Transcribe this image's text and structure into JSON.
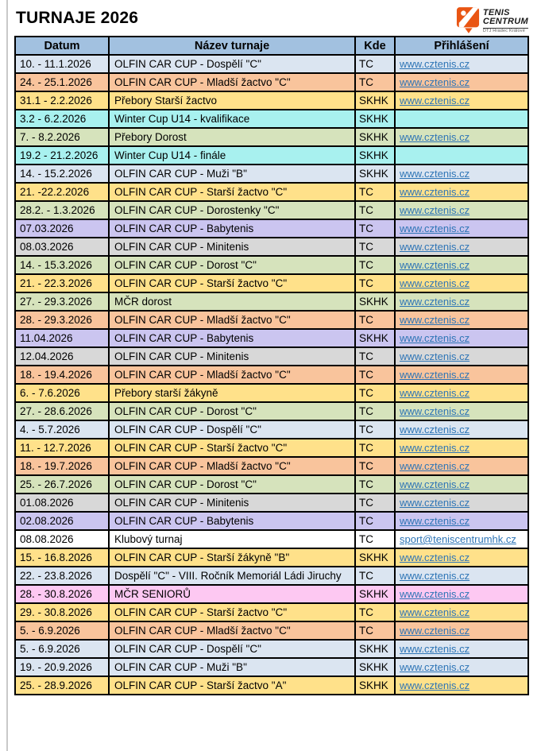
{
  "page": {
    "title": "TURNAJE 2026"
  },
  "logo": {
    "line1": "TENIS",
    "line2": "CENTRUM",
    "subtext": "DTJ Hradec Králové",
    "orange": "#e95513"
  },
  "table": {
    "headers": [
      "Datum",
      "Název turnaje",
      "Kde",
      "Přihlášení"
    ],
    "header_bg": "#a2c1e0",
    "link_color": "#2e75b6",
    "row_colors": {
      "lightblue": "#dbe5f1",
      "salmon": "#f9c49c",
      "yellow": "#ffe18a",
      "cyan": "#a8f1ef",
      "green": "#d6e3bc",
      "lavender": "#cbc5f0",
      "gray": "#d8d8d8",
      "white": "#ffffff",
      "pink": "#fdc8f2"
    },
    "rows": [
      {
        "datum": "10. - 11.1.2026",
        "nazev": "OLFIN CAR CUP - Dospělí \"C\"",
        "kde": "TC",
        "link": "www.cztenis.cz",
        "color": "lightblue"
      },
      {
        "datum": "24. - 25.1.2026",
        "nazev": "OLFIN CAR CUP - Mladší žactvo \"C\"",
        "kde": "TC",
        "link": "www.cztenis.cz",
        "color": "salmon"
      },
      {
        "datum": "31.1 - 2.2.2026",
        "nazev": "Přebory Starší žactvo",
        "kde": "SKHK",
        "link": "www.cztenis.cz",
        "color": "yellow"
      },
      {
        "datum": "3.2 - 6.2.2026",
        "nazev": "Winter Cup U14 - kvalifikace",
        "kde": "SKHK",
        "link": "",
        "color": "cyan"
      },
      {
        "datum": "7. - 8.2.2026",
        "nazev": "Přebory Dorost",
        "kde": "SKHK",
        "link": "www.cztenis.cz",
        "color": "green"
      },
      {
        "datum": "19.2 - 21.2.2026",
        "nazev": "Winter Cup U14 - finále",
        "kde": "SKHK",
        "link": "",
        "color": "cyan"
      },
      {
        "datum": "14. - 15.2.2026",
        "nazev": "OLFIN CAR CUP - Muži \"B\"",
        "kde": "SKHK",
        "link": "www.cztenis.cz",
        "color": "lightblue"
      },
      {
        "datum": "21. -22.2.2026",
        "nazev": "OLFIN CAR CUP - Starší žactvo \"C\"",
        "kde": "TC",
        "link": "www.cztenis.cz",
        "color": "yellow"
      },
      {
        "datum": "28.2. - 1.3.2026",
        "nazev": "OLFIN CAR CUP - Dorostenky \"C\"",
        "kde": "TC",
        "link": "www.cztenis.cz",
        "color": "green"
      },
      {
        "datum": "07.03.2026",
        "nazev": "OLFIN CAR CUP - Babytenis",
        "kde": "TC",
        "link": "www.cztenis.cz",
        "color": "lavender"
      },
      {
        "datum": "08.03.2026",
        "nazev": "OLFIN CAR CUP - Minitenis",
        "kde": "TC",
        "link": "www.cztenis.cz",
        "color": "gray"
      },
      {
        "datum": "14. - 15.3.2026",
        "nazev": "OLFIN CAR CUP - Dorost \"C\"",
        "kde": "TC",
        "link": "www.cztenis.cz",
        "color": "green"
      },
      {
        "datum": "21. - 22.3.2026",
        "nazev": "OLFIN CAR CUP - Starší žactvo \"C\"",
        "kde": "TC",
        "link": "www.cztenis.cz",
        "color": "yellow"
      },
      {
        "datum": "27. - 29.3.2026",
        "nazev": "MČR dorost",
        "kde": "SKHK",
        "link": "www.cztenis.cz",
        "color": "green"
      },
      {
        "datum": "28. - 29.3.2026",
        "nazev": "OLFIN CAR CUP - Mladší žactvo \"C\"",
        "kde": "TC",
        "link": "www.cztenis.cz",
        "color": "salmon"
      },
      {
        "datum": "11.04.2026",
        "nazev": "OLFIN CAR CUP - Babytenis",
        "kde": "SKHK",
        "link": "www.cztenis.cz",
        "color": "lavender"
      },
      {
        "datum": "12.04.2026",
        "nazev": "OLFIN CAR CUP - Minitenis",
        "kde": "TC",
        "link": "www.cztenis.cz",
        "color": "gray"
      },
      {
        "datum": "18. - 19.4.2026",
        "nazev": "OLFIN CAR CUP - Mladší žactvo \"C\"",
        "kde": "TC",
        "link": "www.cztenis.cz",
        "color": "salmon"
      },
      {
        "datum": "6. - 7.6.2026",
        "nazev": "Přebory starší žákyně",
        "kde": "TC",
        "link": "www.cztenis.cz",
        "color": "yellow"
      },
      {
        "datum": "27. - 28.6.2026",
        "nazev": "OLFIN CAR CUP - Dorost \"C\"",
        "kde": "TC",
        "link": "www.cztenis.cz",
        "color": "green"
      },
      {
        "datum": "4. - 5.7.2026",
        "nazev": "OLFIN CAR CUP - Dospělí \"C\"",
        "kde": "TC",
        "link": "www.cztenis.cz",
        "color": "lightblue"
      },
      {
        "datum": "11. - 12.7.2026",
        "nazev": "OLFIN CAR CUP - Starší žactvo \"C\"",
        "kde": "TC",
        "link": "www.cztenis.cz",
        "color": "yellow"
      },
      {
        "datum": "18. - 19.7.2026",
        "nazev": "OLFIN CAR CUP - Mladší žactvo \"C\"",
        "kde": "TC",
        "link": "www.cztenis.cz",
        "color": "salmon"
      },
      {
        "datum": "25. - 26.7.2026",
        "nazev": "OLFIN CAR CUP - Dorost \"C\"",
        "kde": "TC",
        "link": "www.cztenis.cz",
        "color": "green"
      },
      {
        "datum": "01.08.2026",
        "nazev": "OLFIN CAR CUP - Minitenis",
        "kde": "TC",
        "link": "www.cztenis.cz",
        "color": "gray"
      },
      {
        "datum": "02.08.2026",
        "nazev": "OLFIN CAR CUP - Babytenis",
        "kde": "TC",
        "link": "www.cztenis.cz",
        "color": "lavender"
      },
      {
        "datum": "08.08.2026",
        "nazev": "Klubový turnaj",
        "kde": "TC",
        "link": "sport@teniscentrumhk.cz",
        "color": "white"
      },
      {
        "datum": "15. - 16.8.2026",
        "nazev": "OLFIN CAR CUP - Starší žákyně \"B\"",
        "kde": "SKHK",
        "link": "www.cztenis.cz",
        "color": "yellow"
      },
      {
        "datum": "22. - 23.8.2026",
        "nazev": "Dospělí \"C\" - VIII. Ročník Memoriál Ládi Jiruchy",
        "kde": "TC",
        "link": "www.cztenis.cz",
        "color": "lightblue"
      },
      {
        "datum": "28. - 30.8.2026",
        "nazev": "MČR SENIORŮ",
        "kde": "SKHK",
        "link": "www.cztenis.cz",
        "color": "pink"
      },
      {
        "datum": "29. - 30.8.2026",
        "nazev": "OLFIN CAR CUP - Starší žactvo \"C\"",
        "kde": "TC",
        "link": "www.cztenis.cz",
        "color": "yellow"
      },
      {
        "datum": "5. - 6.9.2026",
        "nazev": "OLFIN CAR CUP - Mladší žactvo \"C\"",
        "kde": "TC",
        "link": "www.cztenis.cz",
        "color": "salmon"
      },
      {
        "datum": "5. - 6.9.2026",
        "nazev": "OLFIN CAR CUP - Dospělí \"C\"",
        "kde": "SKHK",
        "link": "www.cztenis.cz",
        "color": "lightblue"
      },
      {
        "datum": "19. - 20.9.2026",
        "nazev": "OLFIN CAR CUP - Muži \"B\"",
        "kde": "SKHK",
        "link": "www.cztenis.cz",
        "color": "lightblue"
      },
      {
        "datum": "25. - 28.9.2026",
        "nazev": "OLFIN CAR CUP - Starší žactvo \"A\"",
        "kde": "SKHK",
        "link": "www.cztenis.cz",
        "color": "yellow"
      }
    ]
  }
}
